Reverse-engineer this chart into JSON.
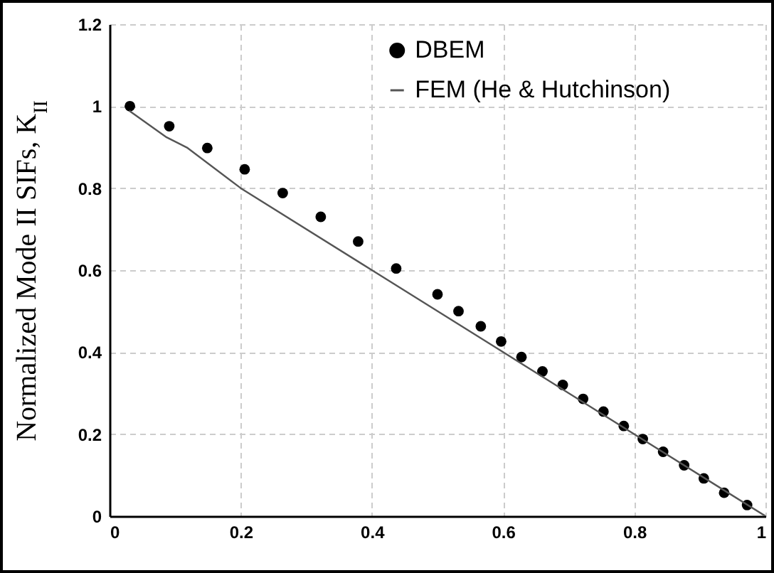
{
  "chart_data": {
    "type": "scatter",
    "ylabel": "Normalized Mode II SIFs, K$_{II}$",
    "xlim": [
      0,
      1
    ],
    "xticks": [
      0,
      0.2,
      0.4,
      0.6,
      0.8,
      1
    ],
    "ylim": [
      0,
      1.2
    ],
    "yticks": [
      0,
      0.2,
      0.4,
      0.6,
      0.8,
      1,
      1.2
    ],
    "grid": true,
    "legend": "top",
    "series": [
      {
        "name": "DBEM",
        "marker": "circle",
        "color": "#000000",
        "x": [
          0.031,
          0.091,
          0.149,
          0.206,
          0.264,
          0.322,
          0.379,
          0.437,
          0.5,
          0.532,
          0.566,
          0.597,
          0.628,
          0.66,
          0.691,
          0.722,
          0.753,
          0.784,
          0.813,
          0.844,
          0.876,
          0.906,
          0.937,
          0.972
        ],
        "values": [
          1.0,
          0.951,
          0.898,
          0.846,
          0.788,
          0.73,
          0.67,
          0.604,
          0.541,
          0.5,
          0.463,
          0.426,
          0.388,
          0.353,
          0.32,
          0.286,
          0.255,
          0.22,
          0.188,
          0.157,
          0.124,
          0.092,
          0.057,
          0.027
        ]
      },
      {
        "name": "FEM (He & Hutchinson)",
        "type": "line",
        "line_style": "solid",
        "color": "#555555",
        "x": [
          0.03,
          0.087,
          0.118,
          0.2,
          0.4,
          0.6,
          0.8,
          1
        ],
        "values": [
          0.989,
          0.924,
          0.899,
          0.8,
          0.6,
          0.4,
          0.2,
          0
        ]
      }
    ]
  }
}
